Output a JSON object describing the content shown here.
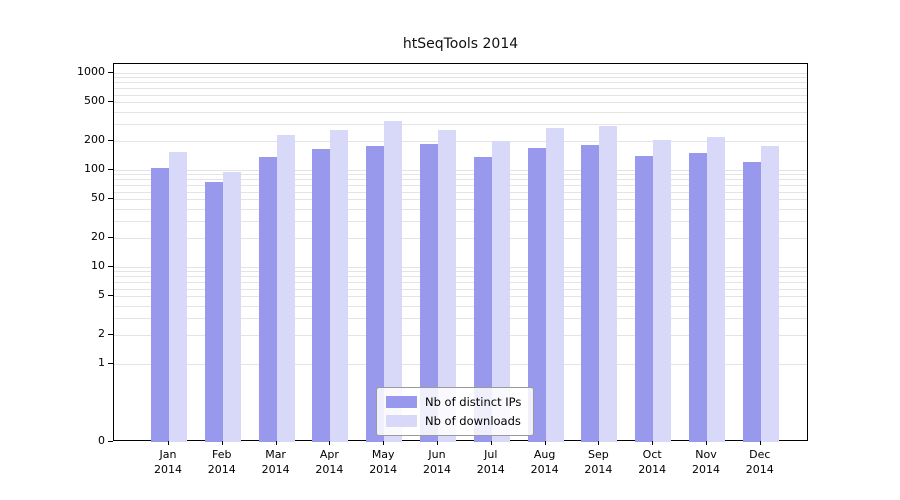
{
  "chart_data": {
    "type": "bar",
    "title": "htSeqTools 2014",
    "categories": [
      "Jan 2014",
      "Feb 2014",
      "Mar 2014",
      "Apr 2014",
      "May 2014",
      "Jun 2014",
      "Jul 2014",
      "Aug 2014",
      "Sep 2014",
      "Oct 2014",
      "Nov 2014",
      "Dec 2014"
    ],
    "series": [
      {
        "name": "Nb of distinct IPs",
        "color": "#9898ec",
        "values": [
          105,
          75,
          135,
          165,
          175,
          185,
          135,
          170,
          180,
          140,
          150,
          120
        ]
      },
      {
        "name": "Nb of downloads",
        "color": "#d8d8f8",
        "values": [
          155,
          95,
          230,
          260,
          320,
          260,
          200,
          270,
          285,
          205,
          220,
          175
        ]
      }
    ],
    "y_ticks": [
      0,
      1,
      2,
      5,
      10,
      20,
      50,
      100,
      200,
      500,
      1000
    ],
    "y_scale": "symlog",
    "ylim": [
      0,
      1200
    ],
    "xlabel": "",
    "ylabel": "",
    "grid": "horizontal, major and minor log ticks",
    "legend_position": "lower center",
    "colors": {
      "grid": "#e4e4e4",
      "axis": "#000000",
      "background": "#ffffff"
    }
  }
}
